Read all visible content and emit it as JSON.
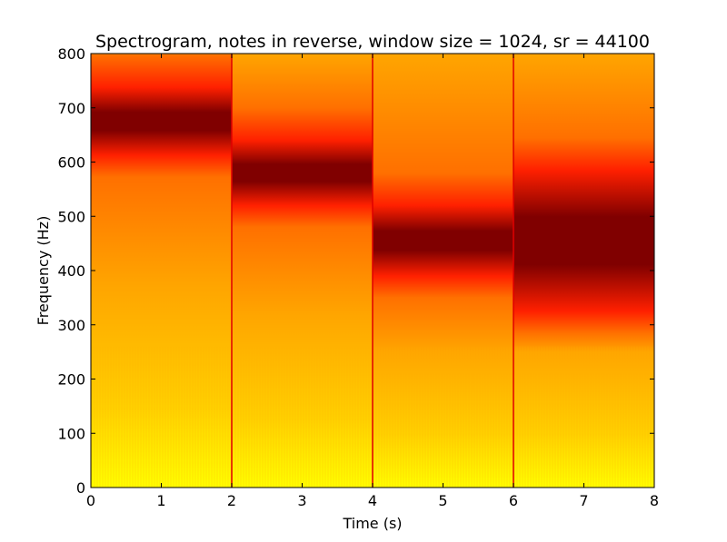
{
  "chart_data": {
    "type": "heatmap",
    "title": "Spectrogram, notes in reverse, window size = 1024, sr = 44100",
    "xlabel": "Time (s)",
    "ylabel": "Frequency (Hz)",
    "xlim": [
      0,
      8
    ],
    "ylim": [
      0,
      800
    ],
    "xticks": [
      0,
      1,
      2,
      3,
      4,
      5,
      6,
      7,
      8
    ],
    "yticks": [
      0,
      100,
      200,
      300,
      400,
      500,
      600,
      700,
      800
    ],
    "grid": false,
    "colormap": "hot",
    "segments": [
      {
        "t_start": 0,
        "t_end": 2,
        "peak_hz": 675,
        "band_width_hz": 85,
        "peak_color": "#800000"
      },
      {
        "t_start": 2,
        "t_end": 4,
        "peak_hz": 580,
        "band_width_hz": 80,
        "peak_color": "#800000"
      },
      {
        "t_start": 4,
        "t_end": 6,
        "peak_hz": 455,
        "band_width_hz": 90,
        "peak_color": "#800000"
      },
      {
        "t_start": 6,
        "t_end": 8,
        "peak_hz": 455,
        "band_width_hz": 220,
        "peak_color": "#800000"
      }
    ],
    "colors": {
      "low_energy": "#ffff00",
      "mid_energy": "#ffa500",
      "high_energy": "#ff2000",
      "peak_energy": "#800000"
    }
  }
}
